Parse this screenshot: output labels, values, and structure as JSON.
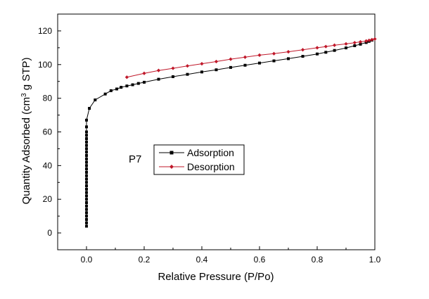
{
  "chart_data": {
    "type": "line",
    "xlabel": "Relative Pressure (P/Po)",
    "ylabel": "Quantity Adsorbed (cm3 g STP)",
    "ylabel_parts": {
      "before": "Quantity Adsorbed (cm",
      "sup": "3",
      "after": " g STP)"
    },
    "xlim": [
      -0.1,
      1.0
    ],
    "ylim": [
      -10,
      130
    ],
    "xticks": [
      0.0,
      0.2,
      0.4,
      0.6,
      0.8,
      1.0
    ],
    "xtick_labels": [
      "0.0",
      "0.2",
      "0.4",
      "0.6",
      "0.8",
      "1.0"
    ],
    "yticks": [
      0,
      20,
      40,
      60,
      80,
      100,
      120
    ],
    "ytick_labels": [
      "0",
      "20",
      "40",
      "60",
      "80",
      "100",
      "120"
    ],
    "grid": false,
    "legend_position": "center",
    "annotation": "P7",
    "series": [
      {
        "name": "Adsorption",
        "color": "#000000",
        "marker": "square",
        "x": [
          0.0,
          0.0,
          0.0,
          0.0,
          0.0,
          0.0,
          0.0,
          0.0,
          0.0,
          0.0,
          0.0,
          0.0,
          0.0,
          0.0,
          0.0,
          0.0,
          0.0,
          0.0,
          0.0,
          0.0,
          0.0,
          0.0,
          0.0,
          0.0,
          0.0,
          0.0,
          0.0,
          0.0,
          0.0,
          0.0,
          0.0,
          0.01,
          0.03,
          0.065,
          0.085,
          0.105,
          0.12,
          0.14,
          0.16,
          0.18,
          0.2,
          0.25,
          0.3,
          0.35,
          0.4,
          0.45,
          0.5,
          0.55,
          0.6,
          0.65,
          0.7,
          0.75,
          0.8,
          0.83,
          0.86,
          0.9,
          0.93,
          0.95,
          0.97,
          0.98,
          0.99
        ],
        "y": [
          4,
          6,
          8,
          10,
          12,
          14,
          16,
          18,
          20,
          22,
          24,
          26,
          28,
          30,
          32,
          34,
          36,
          38,
          40,
          42,
          44,
          46,
          48,
          50,
          52,
          54,
          56,
          58,
          60,
          63,
          67,
          74,
          79,
          82.5,
          84.5,
          85.5,
          86.5,
          87.3,
          88,
          88.8,
          89.5,
          91.3,
          92.8,
          94.2,
          95.6,
          96.9,
          98.3,
          99.6,
          100.9,
          102.2,
          103.5,
          104.9,
          106.3,
          107.3,
          108.4,
          109.9,
          111.2,
          112.1,
          113.1,
          113.8,
          114.5
        ]
      },
      {
        "name": "Desorption",
        "color": "#c0182a",
        "marker": "diamond",
        "x": [
          0.14,
          0.2,
          0.25,
          0.3,
          0.35,
          0.4,
          0.45,
          0.5,
          0.55,
          0.6,
          0.65,
          0.7,
          0.75,
          0.8,
          0.83,
          0.86,
          0.9,
          0.93,
          0.95,
          0.97,
          0.98,
          0.99,
          1.0
        ],
        "y": [
          92.5,
          94.8,
          96.5,
          97.8,
          99.2,
          100.5,
          101.8,
          103.2,
          104.4,
          105.6,
          106.5,
          107.6,
          108.8,
          110.0,
          110.7,
          111.5,
          112.3,
          113.0,
          113.5,
          114.0,
          114.4,
          114.8,
          115.2
        ]
      }
    ]
  }
}
